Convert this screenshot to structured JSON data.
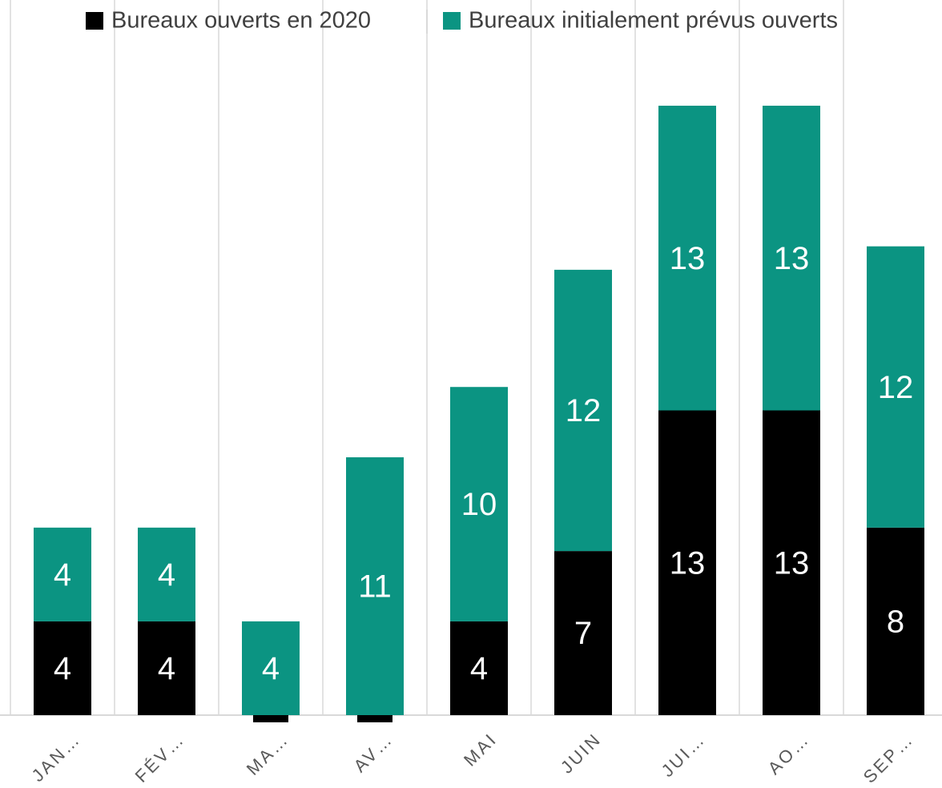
{
  "chart_data": {
    "type": "stacked-bar",
    "categories": [
      "JAN…",
      "FÉV…",
      "MA…",
      "AV…",
      "MAI",
      "JUIN",
      "JUI…",
      "AO…",
      "SEP…"
    ],
    "series": [
      {
        "name": "Bureaux ouverts en 2020",
        "color": "#000000",
        "values": [
          4,
          4,
          0,
          0,
          4,
          7,
          13,
          13,
          8
        ]
      },
      {
        "name": "Bureaux initialement prévus ouverts",
        "color": "#0b9482",
        "values": [
          4,
          4,
          4,
          11,
          10,
          12,
          13,
          13,
          12
        ]
      }
    ],
    "legend": "top"
  }
}
